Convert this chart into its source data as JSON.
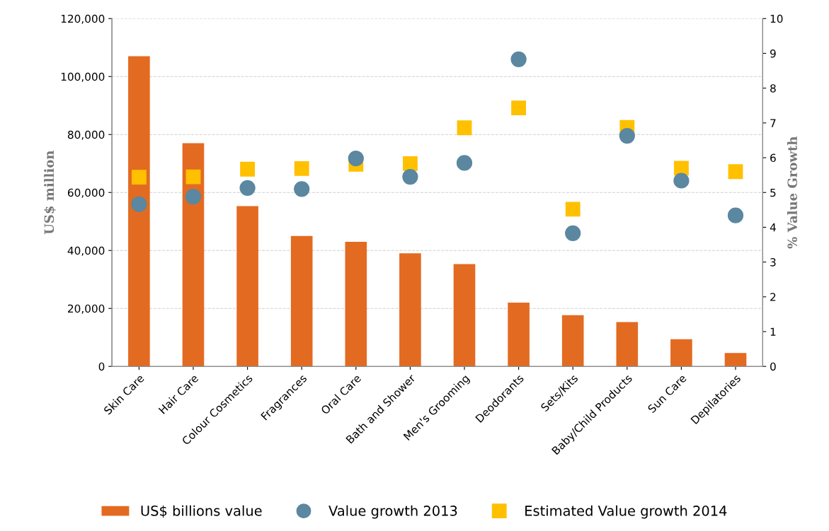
{
  "chart_data": {
    "type": "bar",
    "categories": [
      "Skin Care",
      "Hair Care",
      "Colour Cosmetics",
      "Fragrances",
      "Oral Care",
      "Bath and Shower",
      "Men's Grooming",
      "Deodorants",
      "Sets/Kits",
      "Baby/Child Products",
      "Sun Care",
      "Depilatories"
    ],
    "series": [
      {
        "name": "US$ billions value",
        "color": "#e36b21",
        "values": [
          107000,
          77000,
          55300,
          45000,
          43000,
          39000,
          35300,
          22000,
          17700,
          15300,
          9400,
          4600
        ]
      },
      {
        "name": "Value growth 2013",
        "type": "scatter",
        "axis": "y2",
        "marker": "circle",
        "color": "#5b87a0",
        "values": [
          4.66,
          4.88,
          5.13,
          5.1,
          5.98,
          5.45,
          5.85,
          8.83,
          3.83,
          6.63,
          5.34,
          4.34
        ]
      },
      {
        "name": "Estimated Value growth 2014",
        "type": "scatter",
        "axis": "y2",
        "marker": "square",
        "color": "#ffc000",
        "values": [
          5.44,
          5.45,
          5.67,
          5.69,
          5.81,
          5.83,
          6.86,
          7.43,
          4.52,
          6.87,
          5.7,
          5.6
        ]
      }
    ],
    "ylabel": "US$ million",
    "y2label": "% Value Growth",
    "ylim": [
      0,
      120000
    ],
    "yticks": [
      {
        "value": 0,
        "label": "0"
      },
      {
        "value": 20000,
        "label": "20,000"
      },
      {
        "value": 40000,
        "label": "40,000"
      },
      {
        "value": 60000,
        "label": "60,000"
      },
      {
        "value": 80000,
        "label": "80,000"
      },
      {
        "value": 100000,
        "label": "100,000"
      },
      {
        "value": 120000,
        "label": "120,000"
      }
    ],
    "y2lim": [
      0,
      10
    ],
    "y2ticks": [
      0,
      1,
      2,
      3,
      4,
      5,
      6,
      7,
      8,
      9,
      10
    ],
    "grid": "y",
    "legend": "bottom"
  }
}
